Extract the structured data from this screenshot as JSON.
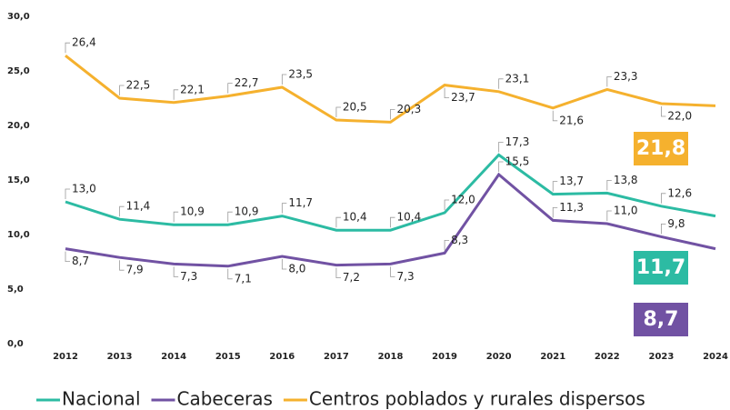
{
  "chart_data": {
    "type": "line",
    "categories": [
      "2012",
      "2013",
      "2014",
      "2015",
      "2016",
      "2017",
      "2018",
      "2019",
      "2020",
      "2021",
      "2022",
      "2023",
      "2024"
    ],
    "series": [
      {
        "name": "Nacional",
        "color": "#2cbba3",
        "values": [
          13.0,
          11.4,
          10.9,
          10.9,
          11.7,
          10.4,
          10.4,
          12.0,
          17.3,
          13.7,
          13.8,
          12.6,
          11.7
        ],
        "value_labels": [
          "13,0",
          "11,4",
          "10,9",
          "10,9",
          "11,7",
          "10,4",
          "10,4",
          "12,0",
          "17,3",
          "13,7",
          "13,8",
          "12,6",
          "11,7"
        ]
      },
      {
        "name": "Cabeceras",
        "color": "#7152a3",
        "values": [
          8.7,
          7.9,
          7.3,
          7.1,
          8.0,
          7.2,
          7.3,
          8.3,
          15.5,
          11.3,
          11.0,
          9.8,
          8.7
        ],
        "value_labels": [
          "8,7",
          "7,9",
          "7,3",
          "7,1",
          "8,0",
          "7,2",
          "7,3",
          "8,3",
          "15,5",
          "11,3",
          "11,0",
          "9,8",
          "8,7"
        ]
      },
      {
        "name": "Centros poblados y rurales dispersos",
        "color": "#f5b12e",
        "values": [
          26.4,
          22.5,
          22.1,
          22.7,
          23.5,
          20.5,
          20.3,
          23.7,
          23.1,
          21.6,
          23.3,
          22.0,
          21.8
        ],
        "value_labels": [
          "26,4",
          "22,5",
          "22,1",
          "22,7",
          "23,5",
          "20,5",
          "20,3",
          "23,7",
          "23,1",
          "21,6",
          "23,3",
          "22,0",
          "21,8"
        ]
      }
    ],
    "ylim": [
      0,
      30
    ],
    "yticks": [
      {
        "value": 0,
        "label": "0,0"
      },
      {
        "value": 5,
        "label": "5,0"
      },
      {
        "value": 10,
        "label": "10,0"
      },
      {
        "value": 15,
        "label": "15,0"
      },
      {
        "value": 20,
        "label": "20,0"
      },
      {
        "value": 25,
        "label": "25,0"
      },
      {
        "value": 30,
        "label": "30,0"
      }
    ],
    "grid": false,
    "legend": "bottom"
  }
}
